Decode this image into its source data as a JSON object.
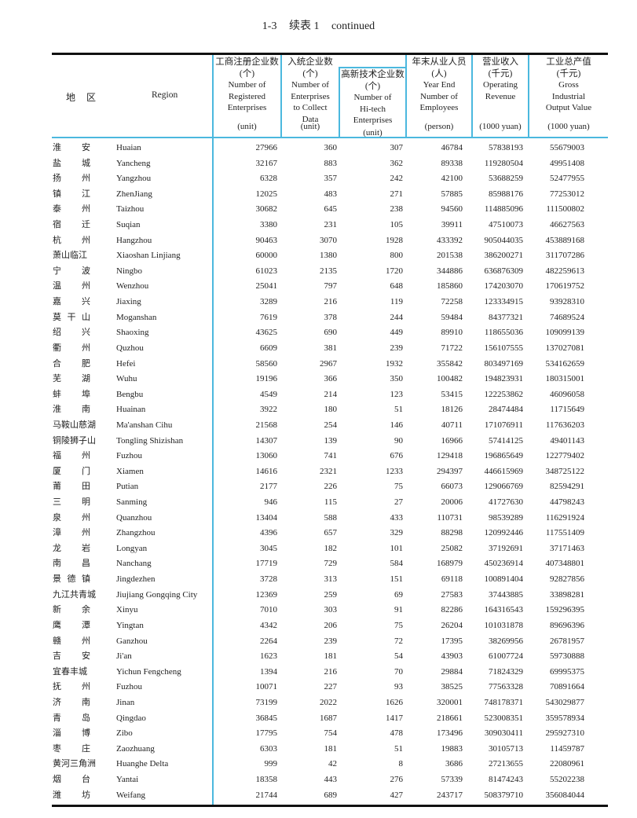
{
  "title": {
    "number": "1-3",
    "zh": "续表 1",
    "en": "continued"
  },
  "header": {
    "region_zh": "地区",
    "region_en": "Region",
    "columns": [
      {
        "zh": "工商注册企业数",
        "zh_unit": "(个)",
        "en": [
          "Number of",
          "Registered",
          "Enterprises"
        ],
        "unit": "(unit)"
      },
      {
        "zh": "入统企业数",
        "zh_unit": "(个)",
        "en": [
          "Number of",
          "Enterprises",
          "to Collect",
          "Data"
        ],
        "unit": "(unit)"
      },
      {
        "zh": "高新技术企业数",
        "zh_unit": "(个)",
        "en": [
          "Number of",
          "Hi-tech",
          "Enterprises"
        ],
        "unit": "(unit)"
      },
      {
        "zh": "年末从业人员",
        "zh_unit": "(人)",
        "en": [
          "Year End",
          "Number of",
          "Employees"
        ],
        "unit": "(person)"
      },
      {
        "zh": "营业收入",
        "zh_unit": "(千元)",
        "en": [
          "Operating",
          "Revenue"
        ],
        "unit": "(1000 yuan)"
      },
      {
        "zh": "工业总产值",
        "zh_unit": "(千元)",
        "en": [
          "Gross",
          "Industrial",
          "Output Value"
        ],
        "unit": "(1000 yuan)"
      }
    ]
  },
  "colors": {
    "accent_rule": "#4bb8de",
    "text": "#222222"
  },
  "rows": [
    {
      "zh": "淮安",
      "en": "Huaian",
      "v": [
        "27966",
        "360",
        "307",
        "46784",
        "57838193",
        "55679003"
      ]
    },
    {
      "zh": "盐城",
      "en": "Yancheng",
      "v": [
        "32167",
        "883",
        "362",
        "89338",
        "119280504",
        "49951408"
      ]
    },
    {
      "zh": "扬州",
      "en": "Yangzhou",
      "v": [
        "6328",
        "357",
        "242",
        "42100",
        "53688259",
        "52477955"
      ]
    },
    {
      "zh": "镇江",
      "en": "ZhenJiang",
      "v": [
        "12025",
        "483",
        "271",
        "57885",
        "85988176",
        "77253012"
      ]
    },
    {
      "zh": "泰州",
      "en": "Taizhou",
      "v": [
        "30682",
        "645",
        "238",
        "94560",
        "114885096",
        "111500802"
      ]
    },
    {
      "zh": "宿迁",
      "en": "Suqian",
      "v": [
        "3380",
        "231",
        "105",
        "39911",
        "47510073",
        "46627563"
      ]
    },
    {
      "zh": "杭州",
      "en": "Hangzhou",
      "v": [
        "90463",
        "3070",
        "1928",
        "433392",
        "905044035",
        "453889168"
      ]
    },
    {
      "zh": "萧山临江",
      "en": "Xiaoshan Linjiang",
      "v": [
        "60000",
        "1380",
        "800",
        "201538",
        "386200271",
        "311707286"
      ]
    },
    {
      "zh": "宁波",
      "en": "Ningbo",
      "v": [
        "61023",
        "2135",
        "1720",
        "344886",
        "636876309",
        "482259613"
      ]
    },
    {
      "zh": "温州",
      "en": "Wenzhou",
      "v": [
        "25041",
        "797",
        "648",
        "185860",
        "174203070",
        "170619752"
      ]
    },
    {
      "zh": "嘉兴",
      "en": "Jiaxing",
      "v": [
        "3289",
        "216",
        "119",
        "72258",
        "123334915",
        "93928310"
      ]
    },
    {
      "zh": "莫干山",
      "en": "Moganshan",
      "v": [
        "7619",
        "378",
        "244",
        "59484",
        "84377321",
        "74689524"
      ]
    },
    {
      "zh": "绍兴",
      "en": "Shaoxing",
      "v": [
        "43625",
        "690",
        "449",
        "89910",
        "118655036",
        "109099139"
      ]
    },
    {
      "zh": "衢州",
      "en": "Quzhou",
      "v": [
        "6609",
        "381",
        "239",
        "71722",
        "156107555",
        "137027081"
      ]
    },
    {
      "zh": "合肥",
      "en": "Hefei",
      "v": [
        "58560",
        "2967",
        "1932",
        "355842",
        "803497169",
        "534162659"
      ]
    },
    {
      "zh": "芜湖",
      "en": "Wuhu",
      "v": [
        "19196",
        "366",
        "350",
        "100482",
        "194823931",
        "180315001"
      ]
    },
    {
      "zh": "蚌埠",
      "en": "Bengbu",
      "v": [
        "4549",
        "214",
        "123",
        "53415",
        "122253862",
        "46096058"
      ]
    },
    {
      "zh": "淮南",
      "en": "Huainan",
      "v": [
        "3922",
        "180",
        "51",
        "18126",
        "28474484",
        "11715649"
      ]
    },
    {
      "zh": "马鞍山慈湖",
      "en": "Ma'anshan Cihu",
      "v": [
        "21568",
        "254",
        "146",
        "40711",
        "171076911",
        "117636203"
      ]
    },
    {
      "zh": "铜陵狮子山",
      "en": "Tongling Shizishan",
      "v": [
        "14307",
        "139",
        "90",
        "16966",
        "57414125",
        "49401143"
      ]
    },
    {
      "zh": "福州",
      "en": "Fuzhou",
      "v": [
        "13060",
        "741",
        "676",
        "129418",
        "196865649",
        "122779402"
      ]
    },
    {
      "zh": "厦门",
      "en": "Xiamen",
      "v": [
        "14616",
        "2321",
        "1233",
        "294397",
        "446615969",
        "348725122"
      ]
    },
    {
      "zh": "莆田",
      "en": "Putian",
      "v": [
        "2177",
        "226",
        "75",
        "66073",
        "129066769",
        "82594291"
      ]
    },
    {
      "zh": "三明",
      "en": "Sanming",
      "v": [
        "946",
        "115",
        "27",
        "20006",
        "41727630",
        "44798243"
      ]
    },
    {
      "zh": "泉州",
      "en": "Quanzhou",
      "v": [
        "13404",
        "588",
        "433",
        "110731",
        "98539289",
        "116291924"
      ]
    },
    {
      "zh": "漳州",
      "en": "Zhangzhou",
      "v": [
        "4396",
        "657",
        "329",
        "88298",
        "120992446",
        "117551409"
      ]
    },
    {
      "zh": "龙岩",
      "en": "Longyan",
      "v": [
        "3045",
        "182",
        "101",
        "25082",
        "37192691",
        "37171463"
      ]
    },
    {
      "zh": "南昌",
      "en": "Nanchang",
      "v": [
        "17719",
        "729",
        "584",
        "168979",
        "450236914",
        "407348801"
      ]
    },
    {
      "zh": "景德镇",
      "en": "Jingdezhen",
      "v": [
        "3728",
        "313",
        "151",
        "69118",
        "100891404",
        "92827856"
      ]
    },
    {
      "zh": "九江共青城",
      "en": "Jiujiang Gongqing City",
      "v": [
        "12369",
        "259",
        "69",
        "27583",
        "37443885",
        "33898281"
      ]
    },
    {
      "zh": "新余",
      "en": "Xinyu",
      "v": [
        "7010",
        "303",
        "91",
        "82286",
        "164316543",
        "159296395"
      ]
    },
    {
      "zh": "鹰潭",
      "en": "Yingtan",
      "v": [
        "4342",
        "206",
        "75",
        "26204",
        "101031878",
        "89696396"
      ]
    },
    {
      "zh": "赣州",
      "en": "Ganzhou",
      "v": [
        "2264",
        "239",
        "72",
        "17395",
        "38269956",
        "26781957"
      ]
    },
    {
      "zh": "吉安",
      "en": "Ji'an",
      "v": [
        "1623",
        "181",
        "54",
        "43903",
        "61007724",
        "59730888"
      ]
    },
    {
      "zh": "宜春丰城",
      "en": "Yichun Fengcheng",
      "v": [
        "1394",
        "216",
        "70",
        "29884",
        "71824329",
        "69995375"
      ]
    },
    {
      "zh": "抚州",
      "en": "Fuzhou",
      "v": [
        "10071",
        "227",
        "93",
        "38525",
        "77563328",
        "70891664"
      ]
    },
    {
      "zh": "济南",
      "en": "Jinan",
      "v": [
        "73199",
        "2022",
        "1626",
        "320001",
        "748178371",
        "543029877"
      ]
    },
    {
      "zh": "青岛",
      "en": "Qingdao",
      "v": [
        "36845",
        "1687",
        "1417",
        "218661",
        "523008351",
        "359578934"
      ]
    },
    {
      "zh": "淄博",
      "en": "Zibo",
      "v": [
        "17795",
        "754",
        "478",
        "173496",
        "309030411",
        "295927310"
      ]
    },
    {
      "zh": "枣庄",
      "en": "Zaozhuang",
      "v": [
        "6303",
        "181",
        "51",
        "19883",
        "30105713",
        "11459787"
      ]
    },
    {
      "zh": "黄河三角洲",
      "en": "Huanghe Delta",
      "v": [
        "999",
        "42",
        "8",
        "3686",
        "27213655",
        "22080961"
      ]
    },
    {
      "zh": "烟台",
      "en": "Yantai",
      "v": [
        "18358",
        "443",
        "276",
        "57339",
        "81474243",
        "55202238"
      ]
    },
    {
      "zh": "潍坊",
      "en": "Weifang",
      "v": [
        "21744",
        "689",
        "427",
        "243717",
        "508379710",
        "356084044"
      ]
    }
  ]
}
